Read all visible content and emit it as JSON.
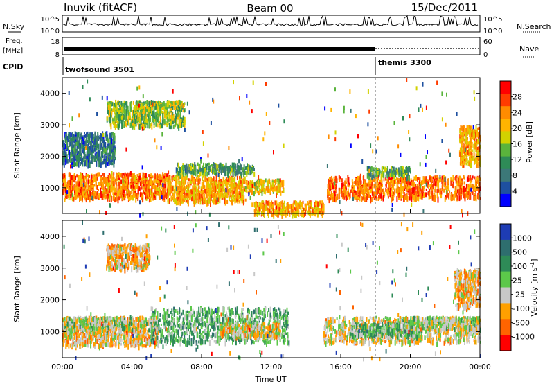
{
  "header": {
    "station": "Inuvik (fitACF)",
    "beam": "Beam 00",
    "date": "15/Dec/2011"
  },
  "top_panels": {
    "nsky_label": "N.Sky",
    "nsearch_label": "N.Search",
    "nsky_ticks": [
      "10^5",
      "10^0"
    ],
    "nsearch_ticks": [
      "10^5",
      "10^0"
    ],
    "freq_label": "Freq.",
    "freq_unit": "[MHz]",
    "freq_ticks": [
      "18",
      "8"
    ],
    "nave_label": "Nave",
    "nave_ticks": [
      "60",
      "0"
    ],
    "cpid_label": "CPID",
    "cpid_segments": [
      {
        "name": "twofsound 3501",
        "start": "00:00",
        "end": "18:00"
      },
      {
        "name": "themis 3300",
        "start": "18:00",
        "end": "00:00"
      }
    ]
  },
  "x_axis": {
    "label": "Time UT",
    "ticks": [
      "00:00",
      "04:00",
      "08:00",
      "12:00",
      "16:00",
      "20:00",
      "00:00"
    ]
  },
  "power_colorbar": {
    "label": "Power [dB]",
    "ticks": [
      "28",
      "24",
      "20",
      "16",
      "12",
      "8",
      "4"
    ],
    "colors": [
      "#ff0000",
      "#ff3c00",
      "#ff8c00",
      "#ffb400",
      "#d2d200",
      "#5ab43c",
      "#2e8b57",
      "#3c7878",
      "#1e50a0",
      "#0000ff"
    ]
  },
  "velocity_colorbar": {
    "label": "Velocity [m s",
    "label_sup": "-1",
    "label_end": "]",
    "ticks": [
      "1000",
      "500",
      "100",
      "25",
      "-25",
      "-100",
      "-500",
      "-1000"
    ],
    "colors": [
      "#1e3cb4",
      "#2e6e6e",
      "#2e8b57",
      "#5cc84a",
      "#c8c8c8",
      "#ffa000",
      "#ff6400",
      "#ff0000"
    ]
  },
  "chart_data": [
    {
      "type": "heatmap",
      "title": "",
      "xlabel": "Time UT",
      "ylabel": "Slant Range [km]",
      "xlim": [
        "00:00",
        "24:00"
      ],
      "ylim": [
        180,
        4500
      ],
      "yticks": [
        1000,
        2000,
        3000,
        4000
      ],
      "colorbar": "Power [dB]",
      "clim": [
        0,
        32
      ],
      "regions": [
        {
          "t0": 0.0,
          "t1": 6.0,
          "r0": 700,
          "r1": 1500,
          "value": 24
        },
        {
          "t0": 6.0,
          "t1": 10.5,
          "r0": 600,
          "r1": 1400,
          "value": 22
        },
        {
          "t0": 10.5,
          "t1": 12.7,
          "r0": 900,
          "r1": 1300,
          "value": 20
        },
        {
          "t0": 6.5,
          "t1": 11.0,
          "r0": 1500,
          "r1": 1800,
          "value": 12
        },
        {
          "t0": 11.0,
          "t1": 15.0,
          "r0": 200,
          "r1": 600,
          "value": 22
        },
        {
          "t0": 15.2,
          "t1": 24.0,
          "r0": 700,
          "r1": 1400,
          "value": 25
        },
        {
          "t0": 17.5,
          "t1": 20.0,
          "r0": 1400,
          "r1": 1700,
          "value": 12
        },
        {
          "t0": 22.8,
          "t1": 24.0,
          "r0": 1800,
          "r1": 3000,
          "value": 22
        },
        {
          "t0": 2.5,
          "t1": 7.0,
          "r0": 3000,
          "r1": 3800,
          "value": 16
        },
        {
          "t0": 0.0,
          "t1": 3.0,
          "r0": 1800,
          "r1": 2800,
          "value": 8
        }
      ]
    },
    {
      "type": "heatmap",
      "title": "",
      "xlabel": "Time UT",
      "ylabel": "Slant Range [km]",
      "xlim": [
        "00:00",
        "24:00"
      ],
      "ylim": [
        180,
        4500
      ],
      "yticks": [
        1000,
        2000,
        3000,
        4000
      ],
      "colorbar": "Velocity [m s-1]",
      "clim": [
        -1000,
        1000
      ],
      "regions": [
        {
          "t0": 0.0,
          "t1": 5.5,
          "r0": 600,
          "r1": 1500,
          "value": -250
        },
        {
          "t0": 0.0,
          "t1": 4.0,
          "r0": 1100,
          "r1": 1500,
          "value": 0
        },
        {
          "t0": 5.0,
          "t1": 13.0,
          "r0": 700,
          "r1": 1800,
          "value": 200
        },
        {
          "t0": 9.0,
          "t1": 12.5,
          "r0": 900,
          "r1": 1300,
          "value": -200
        },
        {
          "t0": 15.0,
          "t1": 24.0,
          "r0": 700,
          "r1": 1500,
          "value": -200
        },
        {
          "t0": 16.5,
          "t1": 20.5,
          "r0": 900,
          "r1": 1300,
          "value": 150
        },
        {
          "t0": 19.5,
          "t1": 24.0,
          "r0": 1100,
          "r1": 1500,
          "value": 0
        },
        {
          "t0": 22.5,
          "t1": 24.0,
          "r0": 1800,
          "r1": 3000,
          "value": -300
        },
        {
          "t0": 2.5,
          "t1": 5.0,
          "r0": 3000,
          "r1": 3800,
          "value": -300
        }
      ]
    }
  ]
}
